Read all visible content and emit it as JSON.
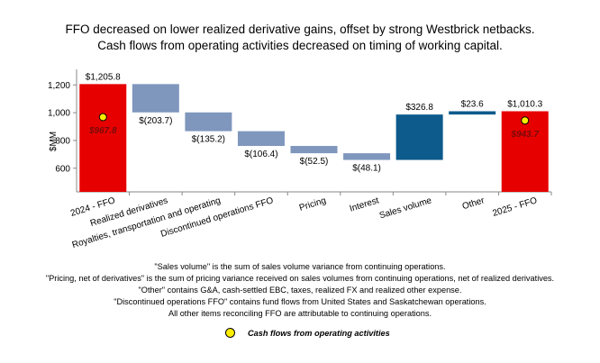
{
  "chart_data": {
    "type": "waterfall",
    "title": "FFO decreased on lower realized derivative gains, offset by strong Westbrick netbacks.",
    "subtitle": "Cash flows from operating activities decreased on timing of working capital.",
    "ylabel": "$MM",
    "ylim": [
      430,
      1260
    ],
    "yticks": [
      600,
      800,
      "1,000",
      "1,200"
    ],
    "ytick_values": [
      600,
      800,
      1000,
      1200
    ],
    "categories": [
      "2024 - FFO",
      "Realized derivatives",
      "Royalties, transportation and operating",
      "Discontinued operations FFO",
      "Pricing",
      "Interest",
      "Sales volume",
      "Other",
      "2025 - FFO"
    ],
    "values": [
      1205.8,
      -203.7,
      -135.2,
      -106.4,
      -52.5,
      -48.1,
      326.8,
      23.6,
      1010.3
    ],
    "kinds": [
      "total",
      "decrease",
      "decrease",
      "decrease",
      "decrease",
      "decrease",
      "increase",
      "increase",
      "total"
    ],
    "labels": [
      "$1,205.8",
      "$(203.7)",
      "$(135.2)",
      "$(106.4)",
      "$(52.5)",
      "$(48.1)",
      "$326.8",
      "$23.6",
      "$1,010.3"
    ],
    "cash_flow_points": [
      {
        "category": "2024 - FFO",
        "value": 967.8,
        "label": "$967.8"
      },
      {
        "category": "2025 - FFO",
        "value": 943.7,
        "label": "$943.7"
      }
    ],
    "colors": {
      "total": "#e60000",
      "decrease": "#7f97bd",
      "increase": "#0d5a8c",
      "marker": "#ffee00",
      "marker_label": "#7a0a0a"
    }
  },
  "notes": [
    "\"Sales volume\" is the sum of sales volume variance from continuing operations.",
    "\"Pricing, net of derivatives\" is the sum of pricing variance received on sales volumes from continuing operations, net of realized derivatives.",
    "\"Other\" contains G&A, cash-settled EBC, taxes, realized FX and realized other expense.",
    "\"Discontinued operations FFO\" contains fund flows from United States and Saskatchewan operations.",
    "All other items reconciling FFO are attributable to continuing operations."
  ],
  "legend": {
    "label": "Cash flows from operating activities"
  }
}
